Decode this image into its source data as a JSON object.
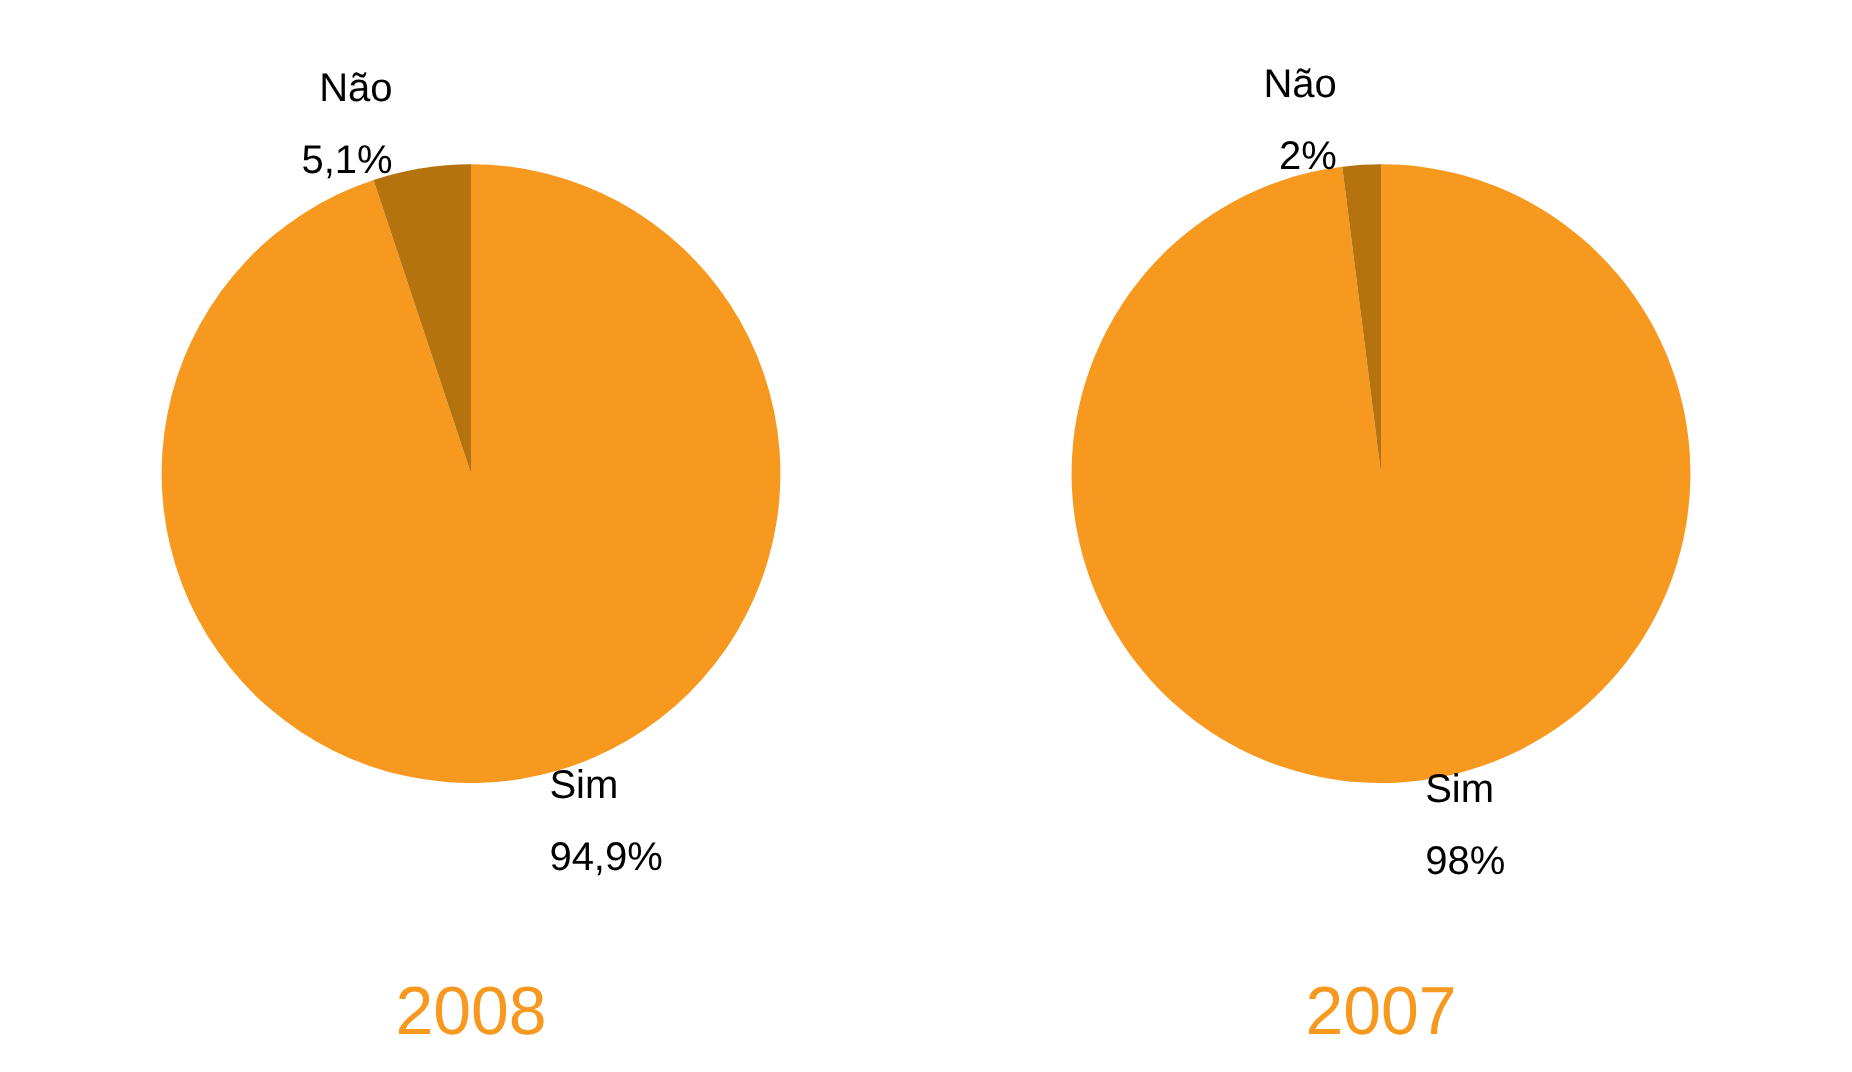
{
  "chart_data": [
    {
      "type": "pie",
      "title": "2008",
      "categories": [
        "Sim",
        "Não"
      ],
      "values": [
        94.9,
        5.1
      ],
      "colors": [
        "#f7991f",
        "#b5730f"
      ],
      "value_labels": [
        "94,9%",
        "5,1%"
      ]
    },
    {
      "type": "pie",
      "title": "2007",
      "categories": [
        "Sim",
        "Não"
      ],
      "values": [
        98,
        2
      ],
      "colors": [
        "#f7991f",
        "#b5730f"
      ],
      "value_labels": [
        "98%",
        "2%"
      ]
    }
  ]
}
